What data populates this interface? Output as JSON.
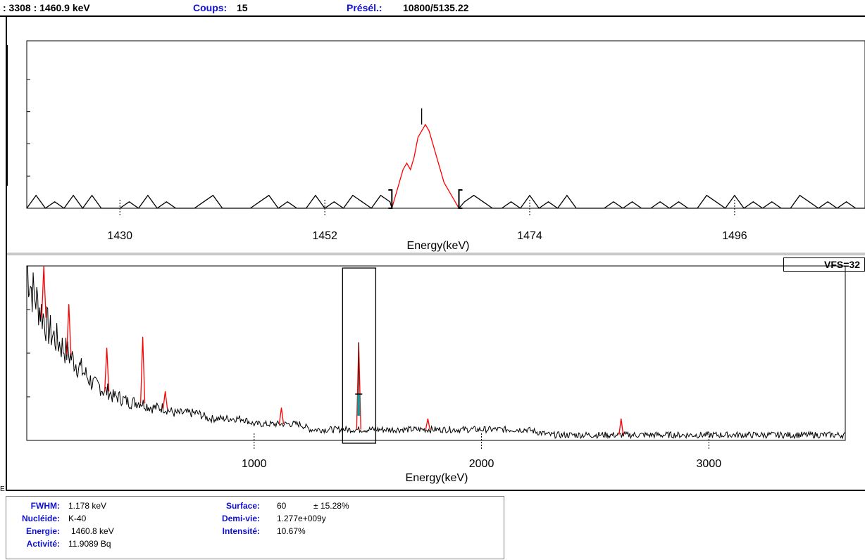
{
  "status_bar": {
    "channel_energy": ": 3308  :  1460.9 keV",
    "counts_label": "Coups:",
    "counts_value": "15",
    "preset_label": "Présél.:",
    "preset_value": "10800/5135.22"
  },
  "vfs_label": "VFS=32",
  "corner_mark": "E",
  "info": {
    "fwhm_label": "FWHM:",
    "fwhm_value": "1.178 keV",
    "nuclide_label": "Nucléide:",
    "nuclide_value": "K-40",
    "energy_label": "Energie:",
    "energy_value": "1460.8 keV",
    "activity_label": "Activité:",
    "activity_value": "11.9089 Bq",
    "surface_label": "Surface:",
    "surface_value": "60",
    "surface_err": "± 15.28%",
    "halflife_label": "Demi-vie:",
    "halflife_value": "1.277e+009y",
    "intensity_label": "Intensité:",
    "intensity_value": "10.67%"
  },
  "colors": {
    "peak": "#ff0000",
    "spectrum": "#000000",
    "marker": "#00a0a0",
    "label_blue": "#1010d0"
  },
  "chart_data": [
    {
      "type": "line",
      "title": "",
      "xlabel": "Energy(keV)",
      "ylabel": "",
      "xlim": [
        1420,
        1510
      ],
      "ylim": [
        0,
        26
      ],
      "xticks": [
        1430,
        1452,
        1474,
        1496
      ],
      "grid": false,
      "roi": [
        1459.2,
        1466.4
      ],
      "peak_energy": 1462.4,
      "series": [
        {
          "role": "background",
          "x": [
            1420,
            1421,
            1422,
            1423,
            1424,
            1425,
            1426,
            1427,
            1428,
            1429,
            1430,
            1431,
            1432,
            1433,
            1434,
            1435,
            1436,
            1437,
            1438,
            1439,
            1440,
            1441,
            1442,
            1443,
            1444,
            1445,
            1446,
            1447,
            1448,
            1449,
            1450,
            1451,
            1452,
            1453,
            1454,
            1455,
            1456,
            1457,
            1458,
            1459,
            1459.2
          ],
          "values": [
            0,
            2,
            0,
            1,
            0,
            2,
            0,
            2,
            0,
            0,
            0,
            1,
            0,
            2,
            0,
            1,
            0,
            0,
            0,
            1,
            2,
            0,
            0,
            0,
            0,
            1,
            2,
            0,
            1,
            0,
            0,
            2,
            0,
            1,
            0,
            2,
            1,
            0,
            2,
            1,
            0
          ]
        },
        {
          "role": "peak",
          "x": [
            1459.2,
            1459.6,
            1460,
            1460.4,
            1460.8,
            1461.2,
            1461.6,
            1462,
            1462.4,
            1462.8,
            1463.2,
            1463.6,
            1464,
            1464.4,
            1464.8,
            1465.2,
            1465.6,
            1466,
            1466.4
          ],
          "values": [
            0,
            2,
            4,
            6,
            7,
            6,
            8,
            11,
            12,
            13,
            12,
            10,
            8,
            6,
            4,
            3,
            2,
            1,
            0
          ]
        },
        {
          "role": "background",
          "x": [
            1466.4,
            1467,
            1468,
            1469,
            1470,
            1471,
            1472,
            1473,
            1474,
            1475,
            1476,
            1477,
            1478,
            1479,
            1480,
            1481,
            1482,
            1483,
            1484,
            1485,
            1486,
            1487,
            1488,
            1489,
            1490,
            1491,
            1492,
            1493,
            1494,
            1495,
            1496,
            1497,
            1498,
            1499,
            1500,
            1501,
            1502,
            1503,
            1504,
            1505,
            1506,
            1507,
            1508,
            1509,
            1510
          ],
          "values": [
            0,
            1,
            2,
            1,
            0,
            0,
            1,
            0,
            2,
            0,
            1,
            0,
            2,
            0,
            0,
            0,
            0,
            1,
            0,
            1,
            0,
            0,
            1,
            0,
            1,
            0,
            0,
            2,
            1,
            0,
            2,
            0,
            1,
            0,
            1,
            0,
            0,
            2,
            1,
            0,
            1,
            0,
            1,
            0,
            0
          ]
        }
      ]
    },
    {
      "type": "line",
      "title": "",
      "xlabel": "Energy(keV)",
      "ylabel": "",
      "xlim": [
        0,
        3600
      ],
      "ylim": [
        0,
        32
      ],
      "xticks": [
        1000,
        2000,
        3000
      ],
      "grid": false,
      "zoom_window": [
        1420,
        1510
      ],
      "series": [
        {
          "role": "spectrum",
          "x": [
            0,
            20,
            40,
            60,
            80,
            100,
            120,
            140,
            160,
            180,
            200,
            220,
            240,
            260,
            280,
            300,
            320,
            340,
            360,
            380,
            400,
            450,
            500,
            550,
            600,
            650,
            700,
            750,
            800,
            850,
            900,
            950,
            1000,
            1050,
            1100,
            1150,
            1200,
            1250,
            1300,
            1350,
            1400,
            1450,
            1500,
            1550,
            1600,
            1700,
            1800,
            1900,
            2000,
            2100,
            2200,
            2300,
            2400,
            2500,
            2600,
            2700,
            2800,
            2900,
            3000,
            3100,
            3200,
            3300,
            3400,
            3500,
            3600
          ],
          "values": [
            32,
            28,
            26,
            24,
            22,
            20,
            19,
            18,
            17,
            16,
            15,
            14,
            13,
            12,
            11,
            10,
            10,
            9,
            9,
            8,
            8,
            7,
            7,
            6,
            6,
            5,
            5,
            5,
            4,
            4,
            4,
            4,
            3,
            3,
            3,
            3,
            3,
            2,
            2,
            2,
            2,
            2,
            2,
            2,
            2,
            2,
            2,
            2,
            2,
            2,
            2,
            1,
            1,
            1,
            1,
            1,
            1,
            1,
            1,
            1,
            1,
            1,
            1,
            1,
            1
          ]
        },
        {
          "role": "peaks",
          "x": [
            75,
            185,
            352,
            510,
            609,
            1120,
            1460,
            1764,
            2614
          ],
          "values": [
            32,
            25,
            17,
            19,
            9,
            6,
            18,
            4,
            4
          ]
        }
      ]
    }
  ]
}
